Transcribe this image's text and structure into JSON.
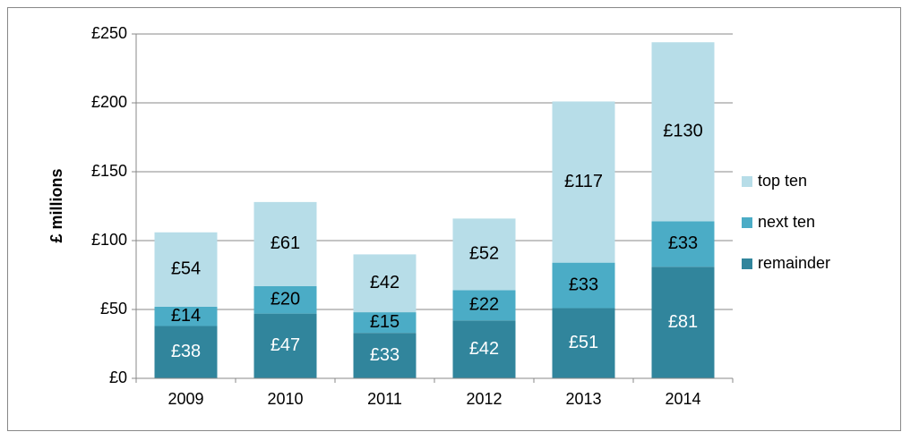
{
  "chart_data": {
    "type": "stacked_bar",
    "y_label": "£ millions",
    "categories": [
      "2009",
      "2010",
      "2011",
      "2012",
      "2013",
      "2014"
    ],
    "series": [
      {
        "name": "remainder",
        "color": "#31859c",
        "label_color": "#ffffff",
        "values": [
          38,
          47,
          33,
          42,
          51,
          81
        ],
        "value_labels": [
          "£38",
          "£47",
          "£33",
          "£42",
          "£51",
          "£81"
        ]
      },
      {
        "name": "next ten",
        "color": "#4bacc6",
        "label_color": "#000000",
        "values": [
          14,
          20,
          15,
          22,
          33,
          33
        ],
        "value_labels": [
          "£14",
          "£20",
          "£15",
          "£22",
          "£33",
          "£33"
        ]
      },
      {
        "name": "top ten",
        "color": "#b7dde8",
        "label_color": "#000000",
        "values": [
          54,
          61,
          42,
          52,
          117,
          130
        ],
        "value_labels": [
          "£54",
          "£61",
          "£42",
          "£52",
          "£117",
          "£130"
        ]
      }
    ],
    "ylim": [
      0,
      250
    ],
    "yticks": [
      {
        "value": 0,
        "label": "£0"
      },
      {
        "value": 50,
        "label": "£50"
      },
      {
        "value": 100,
        "label": "£100"
      },
      {
        "value": 150,
        "label": "£150"
      },
      {
        "value": 200,
        "label": "£200"
      },
      {
        "value": 250,
        "label": "£250"
      }
    ],
    "grid": true,
    "legend": "right"
  }
}
